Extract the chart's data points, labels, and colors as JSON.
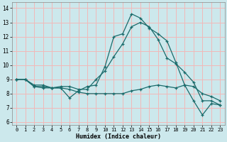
{
  "xlabel": "Humidex (Indice chaleur)",
  "xlim": [
    -0.5,
    23.5
  ],
  "ylim": [
    5.8,
    14.4
  ],
  "yticks": [
    6,
    7,
    8,
    9,
    10,
    11,
    12,
    13,
    14
  ],
  "xticks": [
    0,
    1,
    2,
    3,
    4,
    5,
    6,
    7,
    8,
    9,
    10,
    11,
    12,
    13,
    14,
    15,
    16,
    17,
    18,
    19,
    20,
    21,
    22,
    23
  ],
  "bg_color": "#cce8ec",
  "grid_color": "#f2b8b8",
  "line_color": "#1a6b6b",
  "line1_x": [
    0,
    1,
    2,
    3,
    4,
    5,
    6,
    7,
    8,
    9,
    10,
    11,
    12,
    13,
    14,
    15,
    16,
    17,
    18,
    19,
    20,
    21,
    22,
    23
  ],
  "line1_y": [
    9.0,
    9.0,
    8.5,
    8.4,
    8.4,
    8.4,
    7.7,
    8.2,
    8.5,
    8.6,
    9.9,
    12.0,
    12.2,
    13.6,
    13.3,
    12.6,
    12.2,
    11.7,
    10.2,
    8.6,
    7.5,
    6.5,
    7.3,
    7.2
  ],
  "line2_x": [
    0,
    1,
    2,
    3,
    4,
    5,
    6,
    7,
    8,
    9,
    10,
    11,
    12,
    13,
    14,
    15,
    16,
    17,
    18,
    19,
    20,
    21,
    22,
    23
  ],
  "line2_y": [
    9.0,
    9.0,
    8.6,
    8.6,
    8.4,
    8.5,
    8.5,
    8.3,
    8.3,
    9.0,
    9.6,
    10.6,
    11.5,
    12.7,
    13.0,
    12.7,
    11.8,
    10.5,
    10.1,
    9.5,
    8.8,
    7.5,
    7.5,
    7.2
  ],
  "line3_x": [
    0,
    1,
    2,
    3,
    4,
    5,
    6,
    7,
    8,
    9,
    10,
    11,
    12,
    13,
    14,
    15,
    16,
    17,
    18,
    19,
    20,
    21,
    22,
    23
  ],
  "line3_y": [
    9.0,
    9.0,
    8.5,
    8.5,
    8.4,
    8.4,
    8.3,
    8.1,
    8.0,
    8.0,
    8.0,
    8.0,
    8.0,
    8.2,
    8.3,
    8.5,
    8.6,
    8.5,
    8.4,
    8.6,
    8.5,
    8.0,
    7.8,
    7.5
  ]
}
